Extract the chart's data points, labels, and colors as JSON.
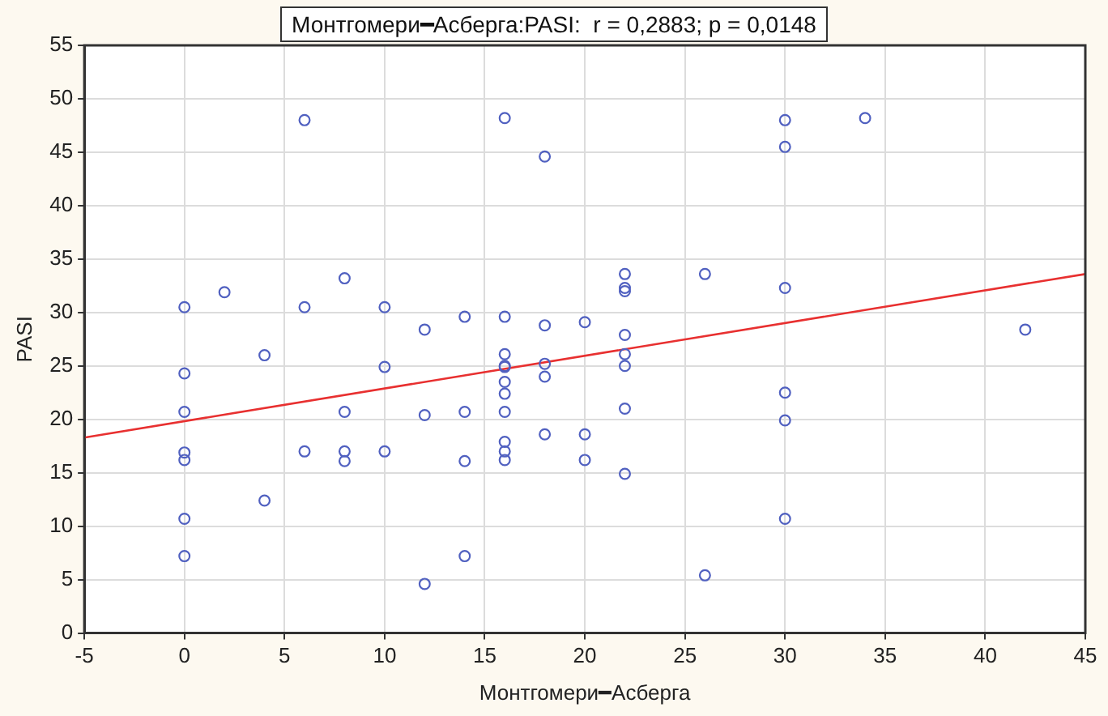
{
  "chart_data": {
    "type": "scatter",
    "title": "Монтгомери━Асберга:PASI:  r = 0,2883; p = 0,0148",
    "xlabel": "Монтгомери━Асберга",
    "ylabel": "PASI",
    "xlim": [
      -5,
      45
    ],
    "xticks": [
      -5,
      0,
      5,
      10,
      15,
      20,
      25,
      30,
      35,
      40,
      45
    ],
    "ylim": [
      0,
      55
    ],
    "yticks": [
      0,
      5,
      10,
      15,
      20,
      25,
      30,
      35,
      40,
      45,
      50,
      55
    ],
    "grid": true,
    "legend": false,
    "marker": "circle",
    "series": [
      {
        "color": "#5060c0",
        "x": [
          0,
          0,
          0,
          0,
          0,
          0,
          0,
          2,
          4,
          4,
          6,
          6,
          6,
          8,
          8,
          8,
          8,
          10,
          10,
          10,
          12,
          12,
          12,
          14,
          14,
          14,
          14,
          16,
          16,
          16,
          16,
          16,
          16,
          16,
          16,
          16,
          16,
          16,
          18,
          18,
          18,
          18,
          18,
          20,
          20,
          20,
          22,
          22,
          22,
          22,
          22,
          22,
          22,
          22,
          26,
          26,
          30,
          30,
          30,
          30,
          30,
          30,
          34,
          42
        ],
        "values": [
          30.5,
          24.3,
          20.7,
          16.9,
          16.2,
          10.7,
          7.2,
          31.9,
          26,
          12.4,
          48,
          30.5,
          17,
          33.2,
          20.7,
          17,
          16.1,
          30.5,
          24.9,
          17,
          28.4,
          20.4,
          4.6,
          29.6,
          20.7,
          16.1,
          7.2,
          48.2,
          29.6,
          26.1,
          25,
          24.9,
          23.5,
          22.4,
          20.7,
          17.9,
          17,
          16.2,
          44.6,
          28.8,
          25.2,
          24,
          18.6,
          29.1,
          18.6,
          16.2,
          33.6,
          32.3,
          32,
          27.9,
          26.1,
          25,
          21,
          14.9,
          33.6,
          5.4,
          48,
          45.5,
          32.3,
          22.5,
          19.9,
          10.7,
          48.2,
          28.4
        ]
      },
      {
        "type": "line",
        "color": "#e83030",
        "marker": "none",
        "x": [
          -5,
          45
        ],
        "values": [
          18.3,
          33.6
        ]
      }
    ]
  }
}
